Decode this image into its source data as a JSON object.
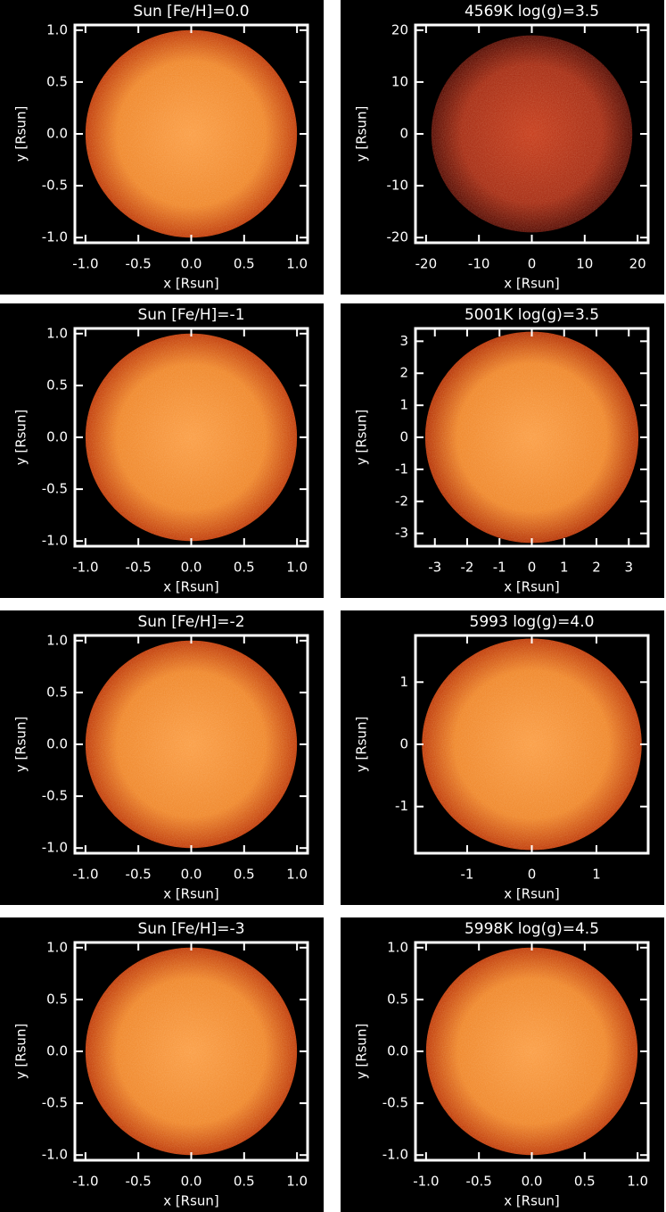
{
  "chart_data": [
    {
      "type": "image",
      "title": "Sun [Fe/H]=0.0",
      "x_label": "x [Rsun]",
      "y_label": "y [Rsun]",
      "xlim": [
        -1.1,
        1.1
      ],
      "ylim": [
        -1.05,
        1.05
      ],
      "disk_radius": 1.0,
      "colors": [
        "#fba04a",
        "#f08a30",
        "#c2400f"
      ],
      "xticks": [
        {
          "value": -1,
          "label": "-1.0"
        },
        -0.5,
        {
          "value": 0,
          "label": "0.0"
        },
        0.5,
        {
          "value": 1,
          "label": "1.0"
        }
      ],
      "yticks": [
        {
          "value": -1,
          "label": "-1.0"
        },
        -0.5,
        {
          "value": 0,
          "label": "0.0"
        },
        0.5,
        {
          "value": 1,
          "label": "1.0"
        }
      ]
    },
    {
      "type": "image",
      "title": "4569K log(g)=3.5",
      "x_label": "x [Rsun]",
      "y_label": "y [Rsun]",
      "xlim": [
        -22,
        22
      ],
      "ylim": [
        -21,
        21
      ],
      "disk_radius": 19,
      "colors": [
        "#c84020",
        "#a83018",
        "#5a1008"
      ],
      "xticks": [
        -20,
        -10,
        0,
        10,
        20
      ],
      "yticks": [
        -20,
        -10,
        0,
        10,
        20
      ]
    },
    {
      "type": "image",
      "title": "Sun [Fe/H]=-1",
      "x_label": "x [Rsun]",
      "y_label": "y [Rsun]",
      "xlim": [
        -1.1,
        1.1
      ],
      "ylim": [
        -1.05,
        1.05
      ],
      "disk_radius": 1.0,
      "colors": [
        "#fba04a",
        "#f08a30",
        "#c2400f"
      ],
      "xticks": [
        {
          "value": -1,
          "label": "-1.0"
        },
        -0.5,
        {
          "value": 0,
          "label": "0.0"
        },
        0.5,
        {
          "value": 1,
          "label": "1.0"
        }
      ],
      "yticks": [
        {
          "value": -1,
          "label": "-1.0"
        },
        -0.5,
        {
          "value": 0,
          "label": "0.0"
        },
        0.5,
        {
          "value": 1,
          "label": "1.0"
        }
      ]
    },
    {
      "type": "image",
      "title": "5001K log(g)=3.5",
      "x_label": "x [Rsun]",
      "y_label": "y [Rsun]",
      "xlim": [
        -3.6,
        3.6
      ],
      "ylim": [
        -3.4,
        3.4
      ],
      "disk_radius": 3.3,
      "colors": [
        "#fba04a",
        "#f08a30",
        "#b8380c"
      ],
      "xticks": [
        -3,
        -2,
        -1,
        0,
        1,
        2,
        3
      ],
      "yticks": [
        -3,
        -2,
        -1,
        0,
        1,
        2,
        3
      ]
    },
    {
      "type": "image",
      "title": "Sun [Fe/H]=-2",
      "x_label": "x [Rsun]",
      "y_label": "y [Rsun]",
      "xlim": [
        -1.1,
        1.1
      ],
      "ylim": [
        -1.05,
        1.05
      ],
      "disk_radius": 1.0,
      "colors": [
        "#fba04a",
        "#f08a30",
        "#c2400f"
      ],
      "xticks": [
        {
          "value": -1,
          "label": "-1.0"
        },
        -0.5,
        {
          "value": 0,
          "label": "0.0"
        },
        0.5,
        {
          "value": 1,
          "label": "1.0"
        }
      ],
      "yticks": [
        {
          "value": -1,
          "label": "-1.0"
        },
        -0.5,
        {
          "value": 0,
          "label": "0.0"
        },
        0.5,
        {
          "value": 1,
          "label": "1.0"
        }
      ]
    },
    {
      "type": "image",
      "title": "5993 log(g)=4.0",
      "x_label": "x [Rsun]",
      "y_label": "y [Rsun]",
      "xlim": [
        -1.8,
        1.8
      ],
      "ylim": [
        -1.75,
        1.75
      ],
      "disk_radius": 1.7,
      "colors": [
        "#fba04a",
        "#f08a30",
        "#c2400f"
      ],
      "xticks": [
        -1,
        0,
        1
      ],
      "yticks": [
        -1,
        0,
        1
      ]
    },
    {
      "type": "image",
      "title": "Sun [Fe/H]=-3",
      "x_label": "x [Rsun]",
      "y_label": "y [Rsun]",
      "xlim": [
        -1.1,
        1.1
      ],
      "ylim": [
        -1.05,
        1.05
      ],
      "disk_radius": 1.0,
      "colors": [
        "#fba04a",
        "#f08a30",
        "#c2400f"
      ],
      "xticks": [
        {
          "value": -1,
          "label": "-1.0"
        },
        -0.5,
        {
          "value": 0,
          "label": "0.0"
        },
        0.5,
        {
          "value": 1,
          "label": "1.0"
        }
      ],
      "yticks": [
        {
          "value": -1,
          "label": "-1.0"
        },
        -0.5,
        {
          "value": 0,
          "label": "0.0"
        },
        0.5,
        {
          "value": 1,
          "label": "1.0"
        }
      ]
    },
    {
      "type": "image",
      "title": "5998K log(g)=4.5",
      "x_label": "x [Rsun]",
      "y_label": "y [Rsun]",
      "xlim": [
        -1.1,
        1.1
      ],
      "ylim": [
        -1.05,
        1.05
      ],
      "disk_radius": 1.0,
      "colors": [
        "#fba04a",
        "#f08a30",
        "#c2400f"
      ],
      "xticks": [
        {
          "value": -1,
          "label": "-1.0"
        },
        -0.5,
        {
          "value": 0,
          "label": "0.0"
        },
        0.5,
        {
          "value": 1,
          "label": "1.0"
        }
      ],
      "yticks": [
        {
          "value": -1,
          "label": "-1.0"
        },
        -0.5,
        {
          "value": 0,
          "label": "0.0"
        },
        0.5,
        {
          "value": 1,
          "label": "1.0"
        }
      ]
    }
  ]
}
